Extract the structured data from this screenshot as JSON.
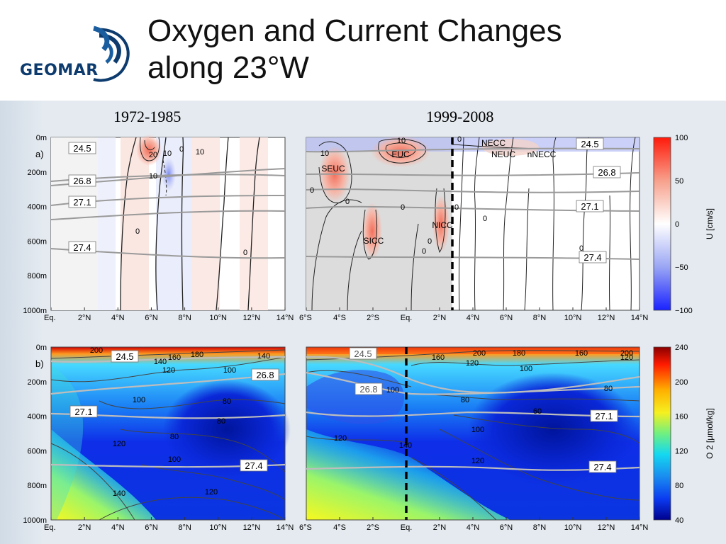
{
  "title": {
    "line1": "Oxygen and Current Changes",
    "line2": "along 23°W"
  },
  "logo": {
    "text": "GEOMAR"
  },
  "periods": {
    "left": "1972-1985",
    "right": "1999-2008"
  },
  "colors": {
    "red": "#f03a2a",
    "blue": "#1f3fd8",
    "navy": "#0d3b6e",
    "oxy_low": "#0018a8",
    "oxy_high": "#d40000"
  },
  "chart_data": [
    {
      "id": "a-1972-1985",
      "type": "heatmap",
      "panel_label": "a)",
      "variable": "Zonal velocity U",
      "x_ticks": [
        "Eq.",
        "2°N",
        "4°N",
        "6°N",
        "8°N",
        "10°N",
        "12°N",
        "14°N"
      ],
      "x_range": [
        0,
        14
      ],
      "y_ticks": [
        "0m",
        "200m",
        "400m",
        "600m",
        "800m",
        "1000m"
      ],
      "y_range": [
        0,
        1000
      ],
      "contour_labels": [
        "20",
        "10",
        "0",
        "10",
        "10",
        "0",
        "0"
      ],
      "isopycnals": [
        {
          "label": "24.5",
          "depth_m": 70
        },
        {
          "label": "26.8",
          "depth_m": 240
        },
        {
          "label": "27.1",
          "depth_m": 400
        },
        {
          "label": "27.4",
          "depth_m": 660
        }
      ]
    },
    {
      "id": "a-1999-2008",
      "type": "heatmap",
      "variable": "Zonal velocity U",
      "x_ticks": [
        "6°S",
        "4°S",
        "2°S",
        "Eq.",
        "2°N",
        "4°N",
        "6°N",
        "8°N",
        "10°N",
        "12°N",
        "14°N"
      ],
      "x_range": [
        -6,
        14
      ],
      "y_range": [
        0,
        1000
      ],
      "current_labels": [
        "SEUC",
        "EUC",
        "SICC",
        "NICC",
        "NECC",
        "NEUC",
        "nNECC"
      ],
      "contour_labels": [
        "10",
        "10",
        "0",
        "0",
        "0",
        "0",
        "0",
        "0",
        "0",
        "0",
        "0"
      ],
      "isopycnals": [
        {
          "label": "24.5",
          "depth_m": 60
        },
        {
          "label": "26.8",
          "depth_m": 210
        },
        {
          "label": "27.1",
          "depth_m": 410
        },
        {
          "label": "27.4",
          "depth_m": 700
        }
      ],
      "colorbar": {
        "label": "U [cm/s]",
        "ticks": [
          "100",
          "50",
          "0",
          "−50",
          "−100"
        ],
        "range": [
          -100,
          100
        ]
      }
    },
    {
      "id": "b-1972-1985",
      "type": "heatmap",
      "panel_label": "b)",
      "variable": "Oxygen O2",
      "x_ticks": [
        "Eq.",
        "2°N",
        "4°N",
        "6°N",
        "8°N",
        "10°N",
        "12°N",
        "14°N"
      ],
      "x_range": [
        0,
        14
      ],
      "y_ticks": [
        "0m",
        "200m",
        "400m",
        "600m",
        "800m",
        "1000m"
      ],
      "y_range": [
        0,
        1000
      ],
      "contour_labels": [
        "200",
        "140",
        "160",
        "180",
        "140",
        "120",
        "100",
        "100",
        "80",
        "80",
        "80",
        "120",
        "100",
        "140",
        "120"
      ],
      "isopycnals": [
        {
          "label": "24.5",
          "depth_m": 70
        },
        {
          "label": "26.8",
          "depth_m": 190
        },
        {
          "label": "27.1",
          "depth_m": 390
        },
        {
          "label": "27.4",
          "depth_m": 700
        }
      ]
    },
    {
      "id": "b-1999-2008",
      "type": "heatmap",
      "variable": "Oxygen O2",
      "x_ticks": [
        "6°S",
        "4°S",
        "2°S",
        "Eq.",
        "2°N",
        "4°N",
        "6°N",
        "8°N",
        "10°N",
        "12°N",
        "14°N"
      ],
      "x_range": [
        -6,
        14
      ],
      "y_range": [
        0,
        1000
      ],
      "contour_labels": [
        "160",
        "200",
        "180",
        "160",
        "120",
        "120",
        "100",
        "100",
        "80",
        "80",
        "60",
        "100",
        "120",
        "140",
        "120",
        "200"
      ],
      "isopycnals": [
        {
          "label": "24.5",
          "depth_m": 50
        },
        {
          "label": "26.8",
          "depth_m": 260
        },
        {
          "label": "27.1",
          "depth_m": 410
        },
        {
          "label": "27.4",
          "depth_m": 700
        }
      ],
      "colorbar": {
        "label": "O 2 [µmol/kg]",
        "ticks": [
          "240",
          "200",
          "160",
          "120",
          "80",
          "40"
        ],
        "range": [
          40,
          240
        ]
      }
    }
  ]
}
